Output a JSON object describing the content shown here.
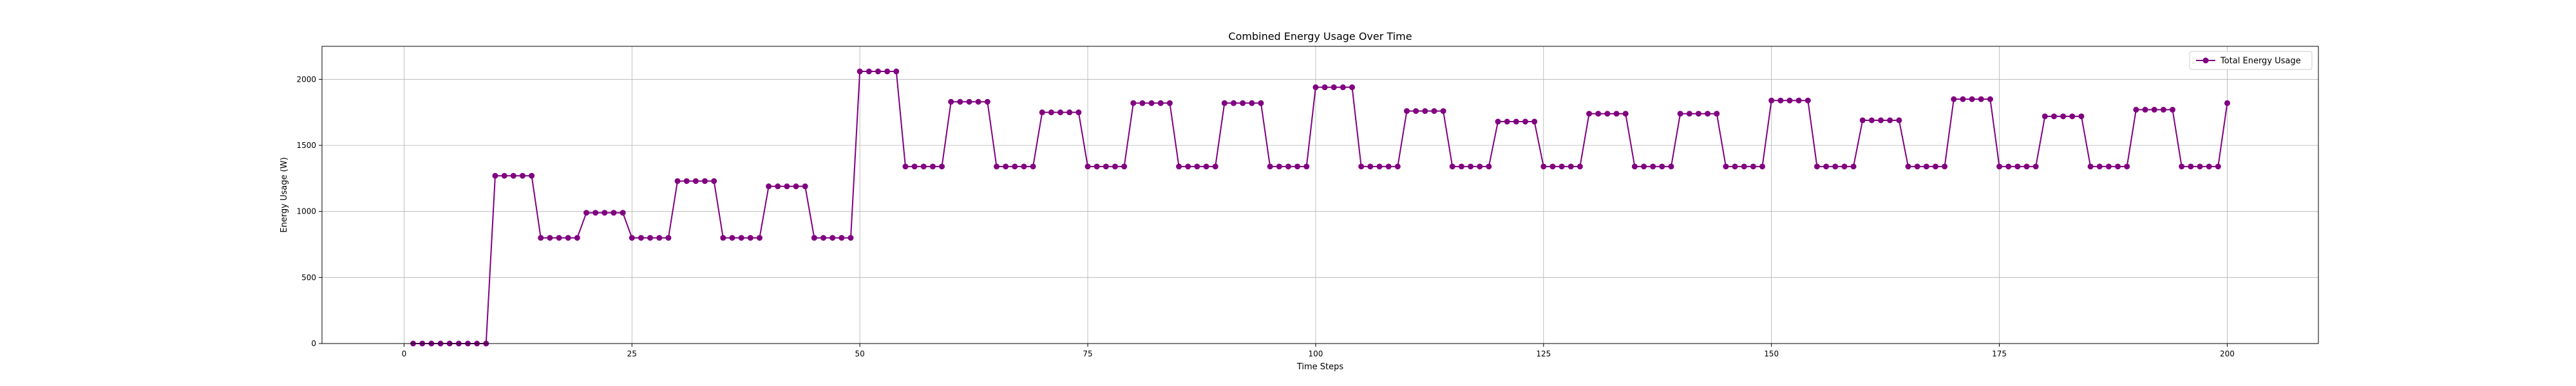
{
  "chart_data": {
    "type": "line",
    "title": "Combined Energy Usage Over Time",
    "xlabel": "Time Steps",
    "ylabel": "Energy Usage (W)",
    "xlim": [
      -9,
      210
    ],
    "ylim": [
      0,
      2250
    ],
    "xticks": [
      0,
      25,
      50,
      75,
      100,
      125,
      150,
      175,
      200
    ],
    "yticks": [
      0,
      500,
      1000,
      1500,
      2000
    ],
    "grid": true,
    "legend_position": "top-right",
    "series": [
      {
        "name": "Total Energy Usage",
        "color": "#800080",
        "marker": "circle",
        "x": [
          1,
          2,
          3,
          4,
          5,
          6,
          7,
          8,
          9,
          10,
          11,
          12,
          13,
          14,
          15,
          16,
          17,
          18,
          19,
          20,
          21,
          22,
          23,
          24,
          25,
          26,
          27,
          28,
          29,
          30,
          31,
          32,
          33,
          34,
          35,
          36,
          37,
          38,
          39,
          40,
          41,
          42,
          43,
          44,
          45,
          46,
          47,
          48,
          49,
          50,
          51,
          52,
          53,
          54,
          55,
          56,
          57,
          58,
          59,
          60,
          61,
          62,
          63,
          64,
          65,
          66,
          67,
          68,
          69,
          70,
          71,
          72,
          73,
          74,
          75,
          76,
          77,
          78,
          79,
          80,
          81,
          82,
          83,
          84,
          85,
          86,
          87,
          88,
          89,
          90,
          91,
          92,
          93,
          94,
          95,
          96,
          97,
          98,
          99,
          100,
          101,
          102,
          103,
          104,
          105,
          106,
          107,
          108,
          109,
          110,
          111,
          112,
          113,
          114,
          115,
          116,
          117,
          118,
          119,
          120,
          121,
          122,
          123,
          124,
          125,
          126,
          127,
          128,
          129,
          130,
          131,
          132,
          133,
          134,
          135,
          136,
          137,
          138,
          139,
          140,
          141,
          142,
          143,
          144,
          145,
          146,
          147,
          148,
          149,
          150,
          151,
          152,
          153,
          154,
          155,
          156,
          157,
          158,
          159,
          160,
          161,
          162,
          163,
          164,
          165,
          166,
          167,
          168,
          169,
          170,
          171,
          172,
          173,
          174,
          175,
          176,
          177,
          178,
          179,
          180,
          181,
          182,
          183,
          184,
          185,
          186,
          187,
          188,
          189,
          190,
          191,
          192,
          193,
          194,
          195,
          196,
          197,
          198,
          199,
          200
        ],
        "y": [
          0,
          0,
          0,
          0,
          0,
          0,
          0,
          0,
          0,
          1270,
          1270,
          1270,
          1270,
          1270,
          800,
          800,
          800,
          800,
          800,
          990,
          990,
          990,
          990,
          990,
          800,
          800,
          800,
          800,
          800,
          1230,
          1230,
          1230,
          1230,
          1230,
          800,
          800,
          800,
          800,
          800,
          1190,
          1190,
          1190,
          1190,
          1190,
          800,
          800,
          800,
          800,
          800,
          2060,
          2060,
          2060,
          2060,
          2060,
          1340,
          1340,
          1340,
          1340,
          1340,
          1830,
          1830,
          1830,
          1830,
          1830,
          1340,
          1340,
          1340,
          1340,
          1340,
          1750,
          1750,
          1750,
          1750,
          1750,
          1340,
          1340,
          1340,
          1340,
          1340,
          1820,
          1820,
          1820,
          1820,
          1820,
          1340,
          1340,
          1340,
          1340,
          1340,
          1820,
          1820,
          1820,
          1820,
          1820,
          1340,
          1340,
          1340,
          1340,
          1340,
          1940,
          1940,
          1940,
          1940,
          1940,
          1340,
          1340,
          1340,
          1340,
          1340,
          1760,
          1760,
          1760,
          1760,
          1760,
          1340,
          1340,
          1340,
          1340,
          1340,
          1680,
          1680,
          1680,
          1680,
          1680,
          1340,
          1340,
          1340,
          1340,
          1340,
          1740,
          1740,
          1740,
          1740,
          1740,
          1340,
          1340,
          1340,
          1340,
          1340,
          1740,
          1740,
          1740,
          1740,
          1740,
          1340,
          1340,
          1340,
          1340,
          1340,
          1840,
          1840,
          1840,
          1840,
          1840,
          1340,
          1340,
          1340,
          1340,
          1340,
          1690,
          1690,
          1690,
          1690,
          1690,
          1340,
          1340,
          1340,
          1340,
          1340,
          1850,
          1850,
          1850,
          1850,
          1850,
          1340,
          1340,
          1340,
          1340,
          1340,
          1720,
          1720,
          1720,
          1720,
          1720,
          1340,
          1340,
          1340,
          1340,
          1340,
          1770,
          1770,
          1770,
          1770,
          1770,
          1340,
          1340,
          1340,
          1340,
          1340,
          1820
        ]
      }
    ]
  }
}
